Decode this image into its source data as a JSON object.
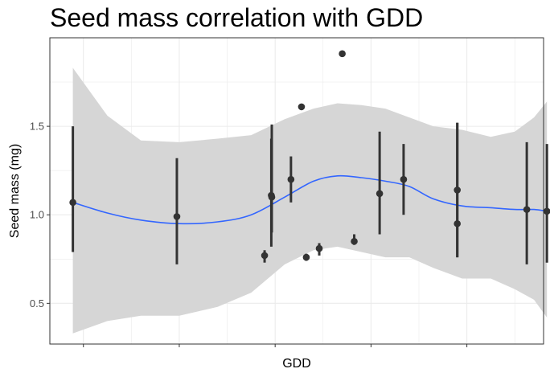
{
  "chart_data": {
    "type": "scatter",
    "title": "Seed mass correlation with GDD",
    "xlabel": "GDD",
    "ylabel": "Seed mass (mg)",
    "xlim": [
      0.3,
      10.6
    ],
    "ylim": [
      0.27,
      2.0
    ],
    "y_ticks": [
      0.5,
      1.0,
      1.5
    ],
    "y_tick_labels": [
      "0.5",
      "1.0",
      "1.5"
    ],
    "x_tick_positions": [
      1,
      3,
      5,
      7,
      9,
      11
    ],
    "grid": true,
    "legend": "none",
    "colors": {
      "points": "#333333",
      "smooth_line": "#3366FF",
      "confidence_band": "#D6D6D6",
      "grid": "#EBEBEB"
    },
    "points": [
      {
        "x": 0.78,
        "y": 1.07,
        "ymin": 0.79,
        "ymax": 1.5
      },
      {
        "x": 2.95,
        "y": 0.99,
        "ymin": 0.72,
        "ymax": 1.32
      },
      {
        "x": 4.78,
        "y": 0.77,
        "ymin": 0.73,
        "ymax": 0.8
      },
      {
        "x": 4.92,
        "y": 1.11,
        "ymin": 0.82,
        "ymax": 1.43
      },
      {
        "x": 4.93,
        "y": 1.1,
        "ymin": 0.9,
        "ymax": 1.51
      },
      {
        "x": 5.33,
        "y": 1.2,
        "ymin": 1.07,
        "ymax": 1.33
      },
      {
        "x": 5.55,
        "y": 1.61,
        "ymin": 1.61,
        "ymax": 1.61
      },
      {
        "x": 5.65,
        "y": 0.76,
        "ymin": 0.74,
        "ymax": 0.78
      },
      {
        "x": 5.92,
        "y": 0.81,
        "ymin": 0.77,
        "ymax": 0.84
      },
      {
        "x": 6.4,
        "y": 1.91,
        "ymin": 1.91,
        "ymax": 1.91
      },
      {
        "x": 6.65,
        "y": 0.85,
        "ymin": 0.83,
        "ymax": 0.89
      },
      {
        "x": 7.18,
        "y": 1.12,
        "ymin": 0.89,
        "ymax": 1.47
      },
      {
        "x": 7.68,
        "y": 1.2,
        "ymin": 1.0,
        "ymax": 1.4
      },
      {
        "x": 8.8,
        "y": 1.14,
        "ymin": 0.76,
        "ymax": 1.52
      },
      {
        "x": 8.8,
        "y": 0.95,
        "ymin": 0.76,
        "ymax": 1.52
      },
      {
        "x": 10.25,
        "y": 1.03,
        "ymin": 0.72,
        "ymax": 1.41
      },
      {
        "x": 10.67,
        "y": 1.02,
        "ymin": 0.73,
        "ymax": 1.4
      }
    ],
    "smooth": [
      {
        "x": 0.78,
        "y": 1.07,
        "lo": 0.33,
        "hi": 1.83
      },
      {
        "x": 1.5,
        "y": 1.01,
        "lo": 0.4,
        "hi": 1.56
      },
      {
        "x": 2.2,
        "y": 0.97,
        "lo": 0.43,
        "hi": 1.42
      },
      {
        "x": 3.0,
        "y": 0.95,
        "lo": 0.43,
        "hi": 1.41
      },
      {
        "x": 3.8,
        "y": 0.96,
        "lo": 0.48,
        "hi": 1.43
      },
      {
        "x": 4.5,
        "y": 1.0,
        "lo": 0.56,
        "hi": 1.45
      },
      {
        "x": 5.2,
        "y": 1.1,
        "lo": 0.72,
        "hi": 1.54
      },
      {
        "x": 5.8,
        "y": 1.19,
        "lo": 0.8,
        "hi": 1.6
      },
      {
        "x": 6.3,
        "y": 1.22,
        "lo": 0.82,
        "hi": 1.63
      },
      {
        "x": 6.8,
        "y": 1.21,
        "lo": 0.79,
        "hi": 1.62
      },
      {
        "x": 7.3,
        "y": 1.19,
        "lo": 0.76,
        "hi": 1.6
      },
      {
        "x": 7.8,
        "y": 1.16,
        "lo": 0.76,
        "hi": 1.55
      },
      {
        "x": 8.3,
        "y": 1.09,
        "lo": 0.7,
        "hi": 1.5
      },
      {
        "x": 8.9,
        "y": 1.05,
        "lo": 0.64,
        "hi": 1.48
      },
      {
        "x": 9.5,
        "y": 1.04,
        "lo": 0.64,
        "hi": 1.44
      },
      {
        "x": 10.0,
        "y": 1.03,
        "lo": 0.58,
        "hi": 1.47
      },
      {
        "x": 10.4,
        "y": 1.03,
        "lo": 0.52,
        "hi": 1.55
      },
      {
        "x": 10.67,
        "y": 1.02,
        "lo": 0.42,
        "hi": 1.64
      }
    ]
  }
}
